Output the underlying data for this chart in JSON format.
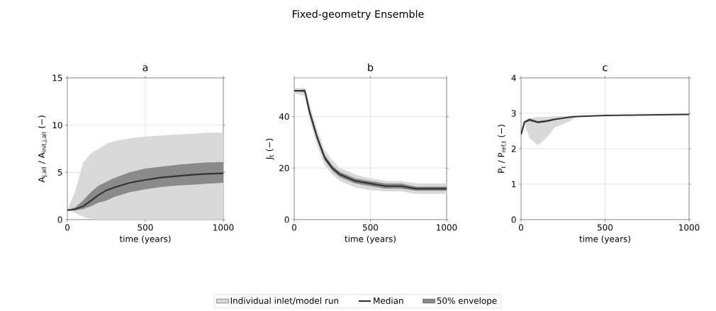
{
  "chart_data": [
    {
      "type": "line",
      "title": "a",
      "xlabel": "time (years)",
      "ylabel": "A$_{j,all}$ / A$_{init,j,all}$ (−)",
      "annotations": [
        "Fixed-geometry Ensemble"
      ],
      "xlim": [
        0,
        1000
      ],
      "ylim": [
        0,
        15
      ],
      "xticks": [
        0,
        500,
        1000
      ],
      "yticks": [
        0,
        5,
        10,
        15
      ],
      "grid": true,
      "legend": "bottom",
      "x": [
        0,
        50,
        100,
        150,
        200,
        250,
        300,
        400,
        500,
        600,
        700,
        800,
        900,
        1000
      ],
      "series": [
        {
          "name": "Individual inlet/model run",
          "type": "area",
          "color": "#d9d9d9",
          "values": [
            null,
            null,
            null,
            null,
            null,
            null,
            null,
            null,
            null,
            null,
            null,
            null,
            null,
            null
          ],
          "lower": [
            1,
            0.7,
            0.3,
            0.1,
            0,
            0,
            0,
            0,
            0,
            0,
            0,
            0,
            0,
            0
          ],
          "upper": [
            1,
            3,
            6,
            7,
            7.5,
            8,
            8.3,
            8.6,
            8.8,
            8.9,
            9,
            9.1,
            9.2,
            9.2
          ]
        },
        {
          "name": "Median",
          "color": "#333333",
          "values": [
            1,
            1.1,
            1.4,
            2,
            2.6,
            3.1,
            3.4,
            3.9,
            4.2,
            4.45,
            4.6,
            4.75,
            4.85,
            4.9
          ]
        },
        {
          "name": "50% envelope",
          "type": "area",
          "color": "#8a8a8a",
          "values": [
            null,
            null,
            null,
            null,
            null,
            null,
            null,
            null,
            null,
            null,
            null,
            null,
            null,
            null
          ],
          "lower": [
            1,
            1,
            1.1,
            1.4,
            1.8,
            2,
            2.4,
            2.9,
            3.2,
            3.45,
            3.6,
            3.7,
            3.8,
            3.9
          ],
          "upper": [
            1,
            1.3,
            2,
            2.9,
            3.6,
            4,
            4.4,
            5,
            5.4,
            5.6,
            5.8,
            5.95,
            6.05,
            6.1
          ]
        }
      ]
    },
    {
      "type": "line",
      "title": "b",
      "xlabel": "time (years)",
      "ylabel": "J$_{t}$ (−)",
      "xlim": [
        0,
        1000
      ],
      "ylim": [
        0,
        55
      ],
      "xticks": [
        0,
        500,
        1000
      ],
      "yticks": [
        0,
        20,
        40
      ],
      "grid": true,
      "x": [
        0,
        70,
        100,
        150,
        200,
        250,
        300,
        400,
        500,
        600,
        700,
        800,
        1000
      ],
      "series": [
        {
          "type": "area",
          "color": "#d9d9d9",
          "values": [
            null,
            null,
            null,
            null,
            null,
            null,
            null,
            null,
            null,
            null,
            null,
            null,
            null
          ],
          "lower": [
            49,
            48,
            39,
            29,
            21,
            17.5,
            15,
            12.5,
            11.5,
            11,
            11,
            10,
            10
          ],
          "upper": [
            51,
            51,
            45,
            35,
            27,
            23,
            20,
            17.5,
            16,
            15,
            15,
            14,
            14
          ]
        },
        {
          "color": "#333333",
          "values": [
            50,
            50,
            42,
            32,
            24,
            20,
            17.5,
            15,
            14,
            13,
            13,
            12,
            12
          ]
        },
        {
          "type": "area",
          "color": "#8a8a8a",
          "values": [
            null,
            null,
            null,
            null,
            null,
            null,
            null,
            null,
            null,
            null,
            null,
            null,
            null
          ],
          "lower": [
            50,
            49.5,
            41,
            31,
            23,
            19,
            16.5,
            14,
            13,
            12,
            12,
            11.2,
            11.2
          ],
          "upper": [
            50,
            50.5,
            43,
            33,
            25,
            21,
            18.5,
            16,
            15,
            14,
            14,
            12.8,
            12.8
          ]
        }
      ]
    },
    {
      "type": "line",
      "title": "c",
      "xlabel": "time (years)",
      "ylabel": "P$_{t}$ / P$_{ref,t}$ (−)",
      "xlim": [
        0,
        1000
      ],
      "ylim": [
        0,
        4
      ],
      "xticks": [
        0,
        500,
        1000
      ],
      "yticks": [
        0,
        1,
        2,
        3,
        4
      ],
      "grid": true,
      "x": [
        0,
        20,
        50,
        100,
        150,
        200,
        300,
        330,
        500,
        1000
      ],
      "series": [
        {
          "type": "area",
          "color": "#d9d9d9",
          "values": [
            null,
            null,
            null,
            null,
            null,
            null,
            null,
            null,
            null,
            null
          ],
          "lower": [
            2.4,
            2.7,
            2.3,
            2.1,
            2.3,
            2.6,
            2.8,
            2.9,
            2.94,
            2.97
          ],
          "upper": [
            2.4,
            2.8,
            2.85,
            2.9,
            2.9,
            2.92,
            2.93,
            2.93,
            2.94,
            2.97
          ]
        },
        {
          "color": "#333333",
          "values": [
            2.4,
            2.75,
            2.82,
            2.75,
            2.78,
            2.83,
            2.9,
            2.91,
            2.94,
            2.97
          ]
        },
        {
          "type": "area",
          "color": "#8a8a8a",
          "values": [
            null,
            null,
            null,
            null,
            null,
            null,
            null,
            null,
            null,
            null
          ],
          "lower": [
            2.4,
            2.73,
            2.78,
            2.72,
            2.75,
            2.81,
            2.89,
            2.9,
            2.94,
            2.97
          ],
          "upper": [
            2.4,
            2.77,
            2.86,
            2.78,
            2.81,
            2.85,
            2.91,
            2.92,
            2.94,
            2.97
          ]
        }
      ]
    }
  ]
}
